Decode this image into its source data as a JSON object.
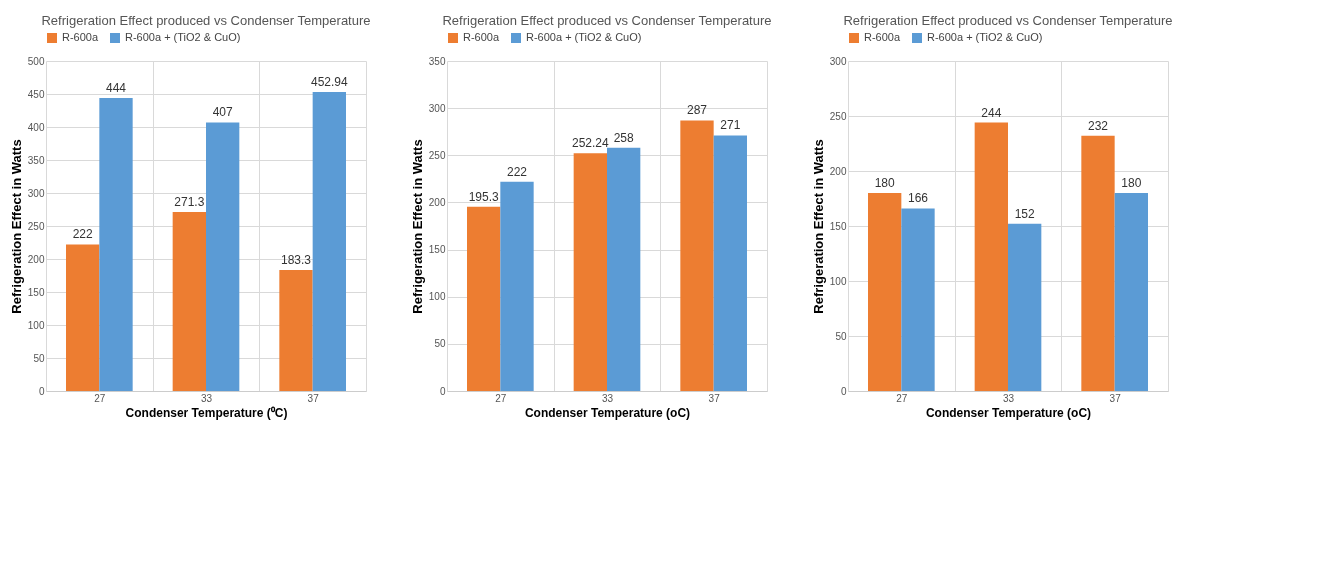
{
  "chart_data": [
    {
      "type": "bar",
      "title": "Refrigeration Effect produced vs Condenser Temperature",
      "xlabel": "Condenser Temperature (⁰C)",
      "ylabel": "Refrigeration Effect in Watts",
      "categories": [
        "27",
        "33",
        "37"
      ],
      "series": [
        {
          "name": "R-600a",
          "color": "#ed7d31",
          "values": [
            222,
            271.3,
            183.3
          ]
        },
        {
          "name": "R-600a + (TiO2 & CuO)",
          "color": "#5b9bd5",
          "values": [
            444,
            407,
            452.94
          ]
        }
      ],
      "ylim": [
        0,
        500
      ],
      "yticks": [
        0,
        50,
        100,
        150,
        200,
        250,
        300,
        350,
        400,
        450,
        500
      ],
      "grid": true,
      "legend": "top",
      "data_labels": true
    },
    {
      "type": "bar",
      "title": "Refrigeration Effect produced vs Condenser Temperature",
      "xlabel": "Condenser Temperature (oC)",
      "ylabel": "Refrigeration Effect in Watts",
      "categories": [
        "27",
        "33",
        "37"
      ],
      "series": [
        {
          "name": "R-600a",
          "color": "#ed7d31",
          "values": [
            195.3,
            252.24,
            287
          ]
        },
        {
          "name": "R-600a + (TiO2 & CuO)",
          "color": "#5b9bd5",
          "values": [
            222,
            258,
            271
          ]
        }
      ],
      "ylim": [
        0,
        350
      ],
      "yticks": [
        0,
        50,
        100,
        150,
        200,
        250,
        300,
        350
      ],
      "grid": true,
      "legend": "top",
      "data_labels": true
    },
    {
      "type": "bar",
      "title": "Refrigeration Effect produced vs Condenser Temperature",
      "xlabel": "Condenser Temperature (oC)",
      "ylabel": "Refrigeration Effect in Watts",
      "categories": [
        "27",
        "33",
        "37"
      ],
      "series": [
        {
          "name": "R-600a",
          "color": "#ed7d31",
          "values": [
            180,
            244,
            232
          ]
        },
        {
          "name": "R-600a + (TiO2 & CuO)",
          "color": "#5b9bd5",
          "values": [
            166,
            152,
            180
          ]
        }
      ],
      "ylim": [
        0,
        300
      ],
      "yticks": [
        0,
        50,
        100,
        150,
        200,
        250,
        300
      ],
      "grid": true,
      "legend": "top",
      "data_labels": true
    }
  ]
}
